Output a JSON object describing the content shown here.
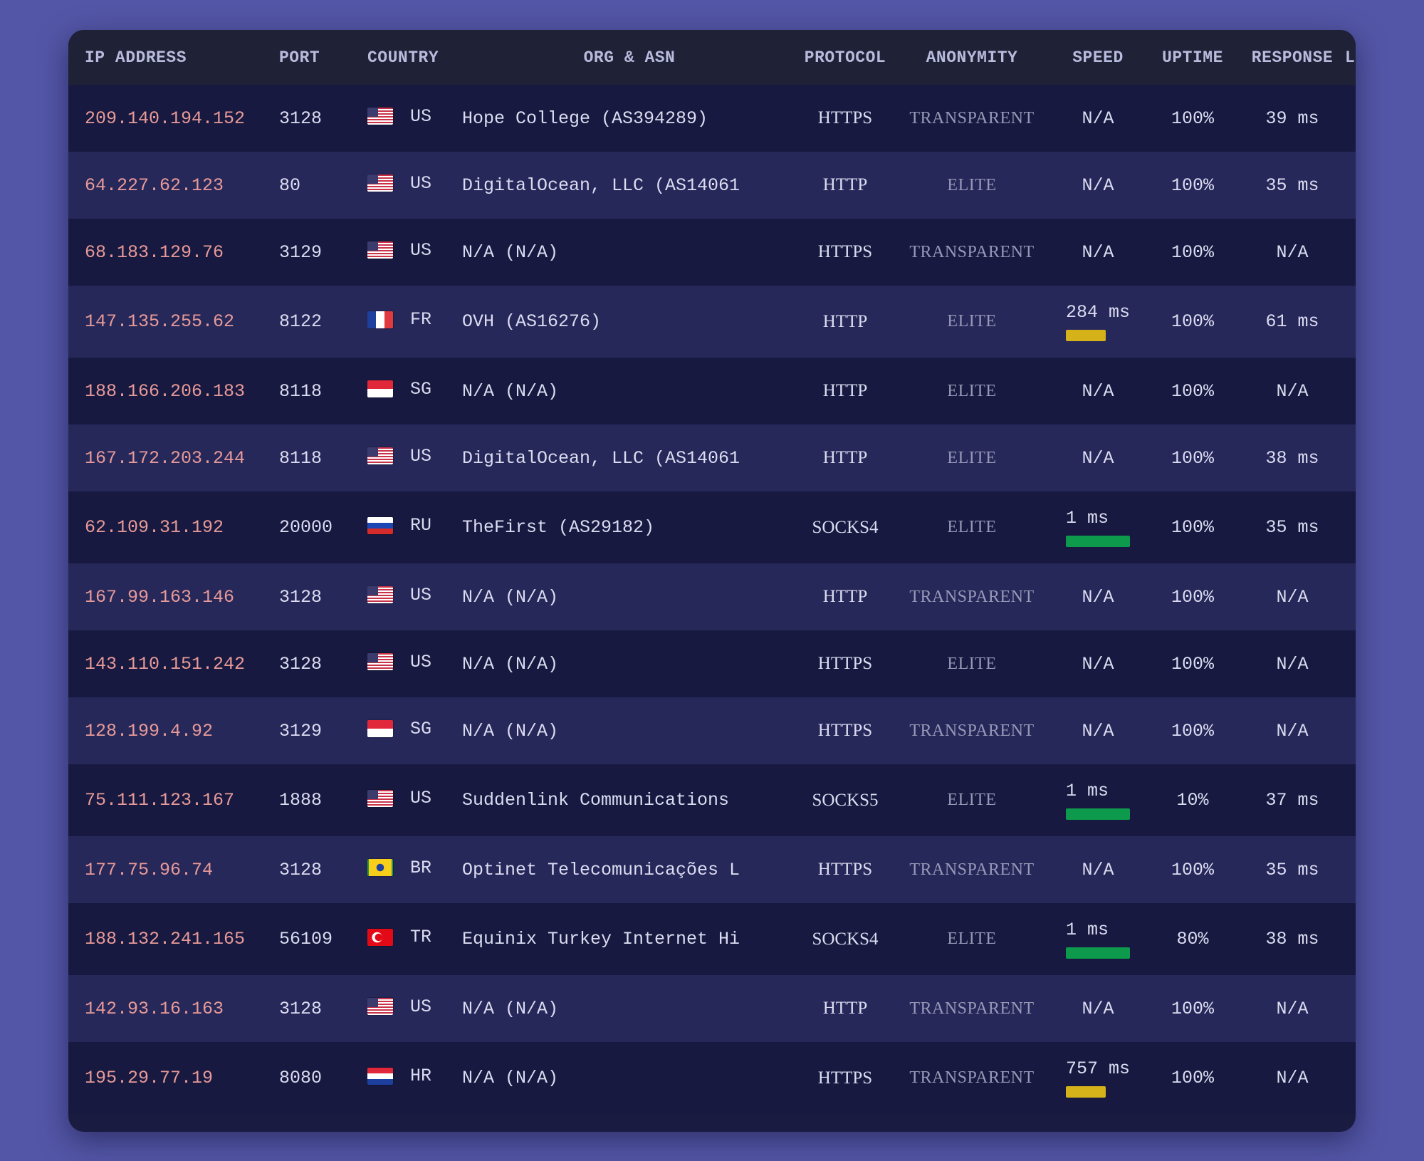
{
  "colors": {
    "page_bg": "#5356a6",
    "table_bg": "#1a1b40",
    "ip_text": "#e89a98",
    "speed_slow": "#d5b21a",
    "speed_fast": "#0e9a4d"
  },
  "headers": {
    "ip": "IP ADDRESS",
    "port": "PORT",
    "country": "COUNTRY",
    "org": "ORG & ASN",
    "protocol": "PROTOCOL",
    "anonymity": "ANONYMITY",
    "speed": "SPEED",
    "uptime": "UPTIME",
    "response": "RESPONSE",
    "extra": "L"
  },
  "rows": [
    {
      "ip": "209.140.194.152",
      "port": "3128",
      "flag": "us-flag-icon",
      "country": "US",
      "org": "Hope College (AS394289)",
      "protocol": "HTTPS",
      "anonymity": "TRANSPARENT",
      "speed": "N/A",
      "speed_bar": null,
      "uptime": "100%",
      "response": "39 ms"
    },
    {
      "ip": "64.227.62.123",
      "port": "80",
      "flag": "us-flag-icon",
      "country": "US",
      "org": "DigitalOcean, LLC (AS14061",
      "protocol": "HTTP",
      "anonymity": "ELITE",
      "speed": "N/A",
      "speed_bar": null,
      "uptime": "100%",
      "response": "35 ms"
    },
    {
      "ip": "68.183.129.76",
      "port": "3129",
      "flag": "us-flag-icon",
      "country": "US",
      "org": "N/A (N/A)",
      "protocol": "HTTPS",
      "anonymity": "TRANSPARENT",
      "speed": "N/A",
      "speed_bar": null,
      "uptime": "100%",
      "response": "N/A"
    },
    {
      "ip": "147.135.255.62",
      "port": "8122",
      "flag": "fr-flag-icon",
      "country": "FR",
      "org": "OVH (AS16276)",
      "protocol": "HTTP",
      "anonymity": "ELITE",
      "speed": "284 ms",
      "speed_bar": "yellow",
      "uptime": "100%",
      "response": "61 ms"
    },
    {
      "ip": "188.166.206.183",
      "port": "8118",
      "flag": "sg-flag-icon",
      "country": "SG",
      "org": "N/A (N/A)",
      "protocol": "HTTP",
      "anonymity": "ELITE",
      "speed": "N/A",
      "speed_bar": null,
      "uptime": "100%",
      "response": "N/A"
    },
    {
      "ip": "167.172.203.244",
      "port": "8118",
      "flag": "us-flag-icon",
      "country": "US",
      "org": "DigitalOcean, LLC (AS14061",
      "protocol": "HTTP",
      "anonymity": "ELITE",
      "speed": "N/A",
      "speed_bar": null,
      "uptime": "100%",
      "response": "38 ms"
    },
    {
      "ip": "62.109.31.192",
      "port": "20000",
      "flag": "ru-flag-icon",
      "country": "RU",
      "org": "TheFirst (AS29182)",
      "protocol": "SOCKS4",
      "anonymity": "ELITE",
      "speed": "1 ms",
      "speed_bar": "green",
      "uptime": "100%",
      "response": "35 ms"
    },
    {
      "ip": "167.99.163.146",
      "port": "3128",
      "flag": "us-flag-icon",
      "country": "US",
      "org": "N/A (N/A)",
      "protocol": "HTTP",
      "anonymity": "TRANSPARENT",
      "speed": "N/A",
      "speed_bar": null,
      "uptime": "100%",
      "response": "N/A"
    },
    {
      "ip": "143.110.151.242",
      "port": "3128",
      "flag": "us-flag-icon",
      "country": "US",
      "org": "N/A (N/A)",
      "protocol": "HTTPS",
      "anonymity": "ELITE",
      "speed": "N/A",
      "speed_bar": null,
      "uptime": "100%",
      "response": "N/A"
    },
    {
      "ip": "128.199.4.92",
      "port": "3129",
      "flag": "sg-flag-icon",
      "country": "SG",
      "org": "N/A (N/A)",
      "protocol": "HTTPS",
      "anonymity": "TRANSPARENT",
      "speed": "N/A",
      "speed_bar": null,
      "uptime": "100%",
      "response": "N/A"
    },
    {
      "ip": "75.111.123.167",
      "port": "1888",
      "flag": "us-flag-icon",
      "country": "US",
      "org": "Suddenlink Communications",
      "protocol": "SOCKS5",
      "anonymity": "ELITE",
      "speed": "1 ms",
      "speed_bar": "green",
      "uptime": "10%",
      "response": "37 ms"
    },
    {
      "ip": "177.75.96.74",
      "port": "3128",
      "flag": "br-flag-icon",
      "country": "BR",
      "org": "Optinet Telecomunicações L",
      "protocol": "HTTPS",
      "anonymity": "TRANSPARENT",
      "speed": "N/A",
      "speed_bar": null,
      "uptime": "100%",
      "response": "35 ms"
    },
    {
      "ip": "188.132.241.165",
      "port": "56109",
      "flag": "tr-flag-icon",
      "country": "TR",
      "org": "Equinix Turkey Internet Hi",
      "protocol": "SOCKS4",
      "anonymity": "ELITE",
      "speed": "1 ms",
      "speed_bar": "green",
      "uptime": "80%",
      "response": "38 ms"
    },
    {
      "ip": "142.93.16.163",
      "port": "3128",
      "flag": "us-flag-icon",
      "country": "US",
      "org": "N/A (N/A)",
      "protocol": "HTTP",
      "anonymity": "TRANSPARENT",
      "speed": "N/A",
      "speed_bar": null,
      "uptime": "100%",
      "response": "N/A"
    },
    {
      "ip": "195.29.77.19",
      "port": "8080",
      "flag": "hr-flag-icon",
      "country": "HR",
      "org": "N/A (N/A)",
      "protocol": "HTTPS",
      "anonymity": "TRANSPARENT",
      "speed": "757 ms",
      "speed_bar": "yellow",
      "uptime": "100%",
      "response": "N/A"
    }
  ]
}
